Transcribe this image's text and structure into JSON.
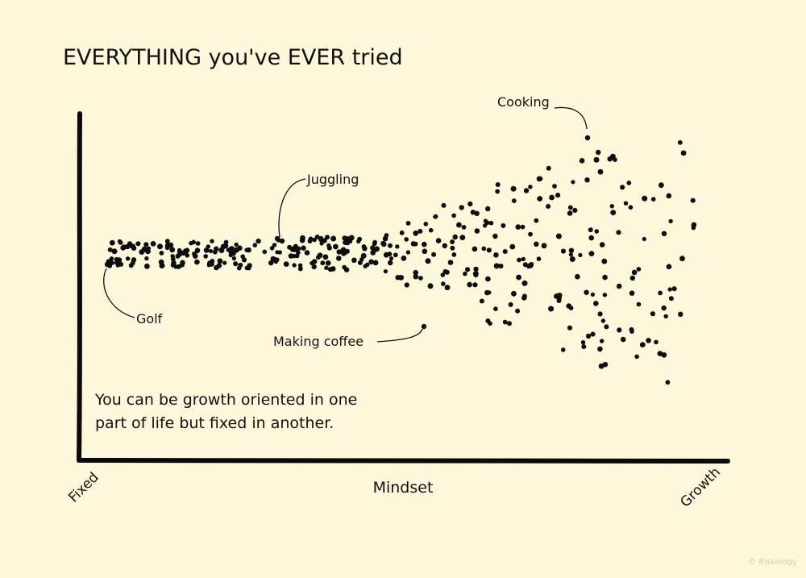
{
  "chart_data": {
    "type": "scatter",
    "title": "EVERYTHING you've EVER tried",
    "xlabel": "Mindset",
    "x_min_label": "Fixed",
    "x_max_label": "Growth",
    "note_lines": [
      "You can be growth oriented in one",
      "part of life but fixed in another."
    ],
    "annotations": [
      {
        "label": "Golf",
        "x": 0.03,
        "y": 0.0
      },
      {
        "label": "Juggling",
        "x": 0.29,
        "y": 0.07
      },
      {
        "label": "Making coffee",
        "x": 0.53,
        "y": -0.25
      },
      {
        "label": "Cooking",
        "x": 0.79,
        "y": 0.4
      }
    ],
    "grid": false,
    "legend": "none",
    "dot_color": "#0d0d0d",
    "background": "#fdf7dc"
  },
  "credit": "© Riskology"
}
